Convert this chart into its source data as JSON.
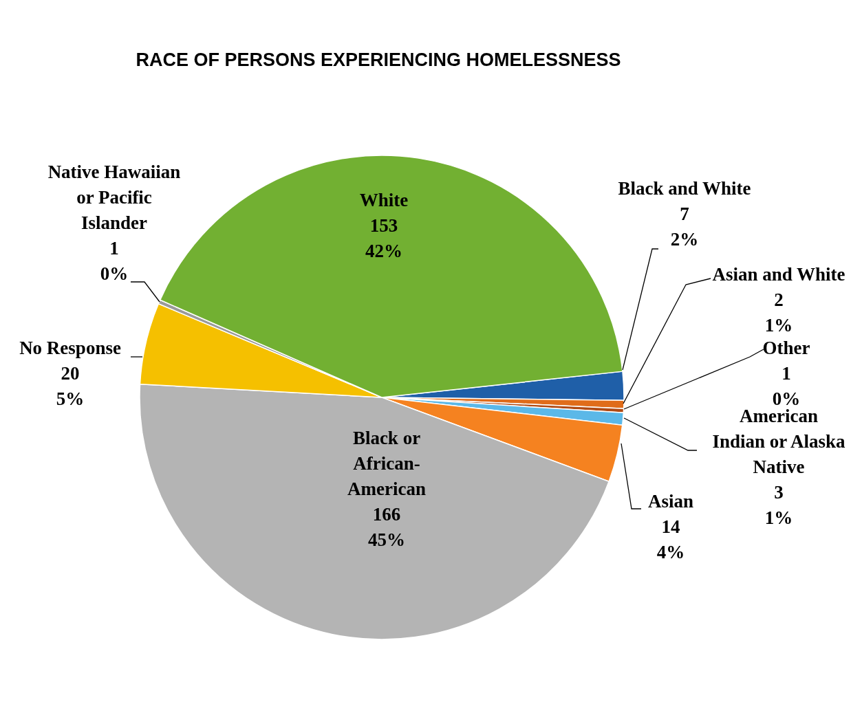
{
  "chart_data": {
    "type": "pie",
    "title": "RACE OF PERSONS EXPERIENCING HOMELESSNESS",
    "categories": [
      "Black and White",
      "Asian and White",
      "Other",
      "American Indian or Alaska Native",
      "Asian",
      "Black or African-American",
      "No Response",
      "Native Hawaiian or Pacific Islander",
      "White"
    ],
    "values": [
      7,
      2,
      1,
      3,
      14,
      166,
      20,
      1,
      153
    ],
    "colors": [
      "#1f5fa8",
      "#e06c1a",
      "#b04a14",
      "#5bb8e8",
      "#f58220",
      "#b4b4b4",
      "#f5c000",
      "#9a9a9a",
      "#72b032"
    ],
    "value_labels": [
      "7\n2%",
      "2\n1%",
      "1\n0%",
      "3\n1%",
      "14\n4%",
      "166\n45%",
      "20\n5%",
      "1\n0%",
      "153\n42%"
    ]
  }
}
